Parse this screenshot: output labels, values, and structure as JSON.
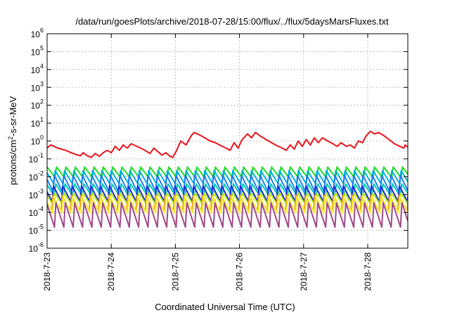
{
  "chart_data": {
    "type": "line",
    "title": "/data/run/goesPlots/archive/2018-07-28/15:00/flux/../flux/5daysMarsFluxes.txt",
    "xlabel": "Coordinated Universal Time (UTC)",
    "ylabel": "protons/cm2-s-sr-MeV",
    "ylabel_parts": {
      "pre": "protons/cm",
      "sup": "2",
      "post": "-s-sr-MeV"
    },
    "yscale": "log",
    "ylim": [
      "1e-6",
      "1e6"
    ],
    "y_ticks": [
      {
        "base": "10",
        "exp": "-6",
        "value": 1e-06
      },
      {
        "base": "10",
        "exp": "-5",
        "value": 1e-05
      },
      {
        "base": "10",
        "exp": "-4",
        "value": 0.0001
      },
      {
        "base": "10",
        "exp": "-3",
        "value": 0.001
      },
      {
        "base": "10",
        "exp": "-2",
        "value": 0.01
      },
      {
        "base": "10",
        "exp": "-1",
        "value": 0.1
      },
      {
        "base": "10",
        "exp": "0",
        "value": 1
      },
      {
        "base": "10",
        "exp": "1",
        "value": 10
      },
      {
        "base": "10",
        "exp": "2",
        "value": 100
      },
      {
        "base": "10",
        "exp": "3",
        "value": 1000
      },
      {
        "base": "10",
        "exp": "4",
        "value": 10000
      },
      {
        "base": "10",
        "exp": "5",
        "value": 100000
      },
      {
        "base": "10",
        "exp": "6",
        "value": 1000000
      }
    ],
    "xlim": [
      "2018-07-23 00:00",
      "2018-07-28 15:00"
    ],
    "x_ticks": [
      "2018-7-23",
      "2018-7-24",
      "2018-7-25",
      "2018-7-26",
      "2018-7-27",
      "2018-7-28"
    ],
    "grid": true,
    "series": [
      {
        "color": "#e8141a",
        "points": [
          [
            "2018-07-23 00:00",
            0.4
          ],
          [
            "2018-07-23 01:20",
            0.6
          ],
          [
            "2018-07-23 04:00",
            0.4
          ],
          [
            "2018-07-23 07:00",
            0.3
          ],
          [
            "2018-07-23 09:00",
            0.22
          ],
          [
            "2018-07-23 11:00",
            0.17
          ],
          [
            "2018-07-23 12:30",
            0.15
          ],
          [
            "2018-07-23 13:30",
            0.22
          ],
          [
            "2018-07-23 15:00",
            0.15
          ],
          [
            "2018-07-23 16:30",
            0.12
          ],
          [
            "2018-07-23 18:00",
            0.2
          ],
          [
            "2018-07-23 19:30",
            0.14
          ],
          [
            "2018-07-23 21:00",
            0.22
          ],
          [
            "2018-07-23 22:30",
            0.3
          ],
          [
            "2018-07-24 00:00",
            0.22
          ],
          [
            "2018-07-24 01:30",
            0.5
          ],
          [
            "2018-07-24 03:00",
            0.3
          ],
          [
            "2018-07-24 04:30",
            0.6
          ],
          [
            "2018-07-24 06:00",
            0.4
          ],
          [
            "2018-07-24 07:30",
            0.7
          ],
          [
            "2018-07-24 09:00",
            0.55
          ],
          [
            "2018-07-24 11:00",
            0.4
          ],
          [
            "2018-07-24 13:00",
            0.28
          ],
          [
            "2018-07-24 14:30",
            0.2
          ],
          [
            "2018-07-24 16:00",
            0.4
          ],
          [
            "2018-07-24 17:30",
            0.25
          ],
          [
            "2018-07-24 19:00",
            0.16
          ],
          [
            "2018-07-24 20:30",
            0.22
          ],
          [
            "2018-07-24 22:00",
            0.14
          ],
          [
            "2018-07-24 23:00",
            0.12
          ],
          [
            "2018-07-25 00:30",
            0.3
          ],
          [
            "2018-07-25 02:00",
            1.0
          ],
          [
            "2018-07-25 04:00",
            0.6
          ],
          [
            "2018-07-25 06:00",
            2.0
          ],
          [
            "2018-07-25 07:00",
            3.0
          ],
          [
            "2018-07-25 09:00",
            2.2
          ],
          [
            "2018-07-25 11:00",
            1.5
          ],
          [
            "2018-07-25 13:00",
            1.0
          ],
          [
            "2018-07-25 15:00",
            0.8
          ],
          [
            "2018-07-25 17:00",
            0.55
          ],
          [
            "2018-07-25 19:00",
            0.4
          ],
          [
            "2018-07-25 20:30",
            0.3
          ],
          [
            "2018-07-25 22:00",
            0.8
          ],
          [
            "2018-07-25 23:30",
            0.4
          ],
          [
            "2018-07-26 01:00",
            1.2
          ],
          [
            "2018-07-26 03:00",
            2.5
          ],
          [
            "2018-07-26 04:30",
            1.5
          ],
          [
            "2018-07-26 06:00",
            3.0
          ],
          [
            "2018-07-26 08:00",
            1.8
          ],
          [
            "2018-07-26 10:00",
            1.2
          ],
          [
            "2018-07-26 12:00",
            0.8
          ],
          [
            "2018-07-26 14:00",
            0.55
          ],
          [
            "2018-07-26 16:00",
            0.4
          ],
          [
            "2018-07-26 17:30",
            0.3
          ],
          [
            "2018-07-26 19:00",
            0.6
          ],
          [
            "2018-07-26 20:30",
            0.35
          ],
          [
            "2018-07-26 22:00",
            1.0
          ],
          [
            "2018-07-26 23:30",
            0.5
          ],
          [
            "2018-07-27 01:00",
            1.2
          ],
          [
            "2018-07-27 02:30",
            0.6
          ],
          [
            "2018-07-27 04:00",
            1.5
          ],
          [
            "2018-07-27 05:30",
            0.8
          ],
          [
            "2018-07-27 07:00",
            1.5
          ],
          [
            "2018-07-27 09:00",
            1.0
          ],
          [
            "2018-07-27 11:00",
            0.7
          ],
          [
            "2018-07-27 12:30",
            0.5
          ],
          [
            "2018-07-27 14:00",
            0.8
          ],
          [
            "2018-07-27 16:00",
            0.5
          ],
          [
            "2018-07-27 17:30",
            0.6
          ],
          [
            "2018-07-27 19:00",
            0.4
          ],
          [
            "2018-07-27 20:30",
            1.0
          ],
          [
            "2018-07-27 22:00",
            0.8
          ],
          [
            "2018-07-27 23:30",
            2.0
          ],
          [
            "2018-07-28 01:00",
            3.5
          ],
          [
            "2018-07-28 02:30",
            2.5
          ],
          [
            "2018-07-28 04:00",
            3.0
          ],
          [
            "2018-07-28 06:00",
            2.0
          ],
          [
            "2018-07-28 08:00",
            1.2
          ],
          [
            "2018-07-28 10:00",
            0.7
          ],
          [
            "2018-07-28 12:00",
            0.5
          ],
          [
            "2018-07-28 13:30",
            0.4
          ],
          [
            "2018-07-28 14:00",
            0.6
          ],
          [
            "2018-07-28 15:00",
            0.45
          ]
        ]
      },
      {
        "color": "#22dd22",
        "sawtooth": {
          "period_hours": 3.5,
          "peak": 0.035,
          "trough": 0.009,
          "phase_hours": 0
        }
      },
      {
        "color": "#00b0e0",
        "sawtooth": {
          "period_hours": 3.5,
          "peak": 0.022,
          "trough": 0.004,
          "phase_hours": 0.5
        }
      },
      {
        "color": "#1e7ef0",
        "sawtooth": {
          "period_hours": 3.5,
          "peak": 0.012,
          "trough": 0.0015,
          "phase_hours": 0.8
        }
      },
      {
        "color": "#00c8b4",
        "sawtooth": {
          "period_hours": 3.5,
          "peak": 0.004,
          "trough": 0.0008,
          "phase_hours": 0.3
        }
      },
      {
        "color": "#1c2ed8",
        "sawtooth": {
          "period_hours": 3.5,
          "peak": 0.003,
          "trough": 0.0004,
          "phase_hours": 1.1
        }
      },
      {
        "color": "#b8e61c",
        "sawtooth": {
          "period_hours": 3.5,
          "peak": 0.0012,
          "trough": 0.00025,
          "phase_hours": 0.6
        }
      },
      {
        "color": "#f0a21c",
        "sawtooth": {
          "period_hours": 3.5,
          "peak": 0.0009,
          "trough": 0.00012,
          "phase_hours": 1.3
        }
      },
      {
        "color": "#f4f040",
        "sawtooth": {
          "period_hours": 3.5,
          "peak": 0.0008,
          "trough": 9e-05,
          "phase_hours": 0.9
        }
      },
      {
        "color": "#a04a8a",
        "sawtooth": {
          "period_hours": 3.5,
          "peak": 0.00035,
          "trough": 1.5e-05,
          "phase_hours": 0.2
        }
      }
    ]
  }
}
